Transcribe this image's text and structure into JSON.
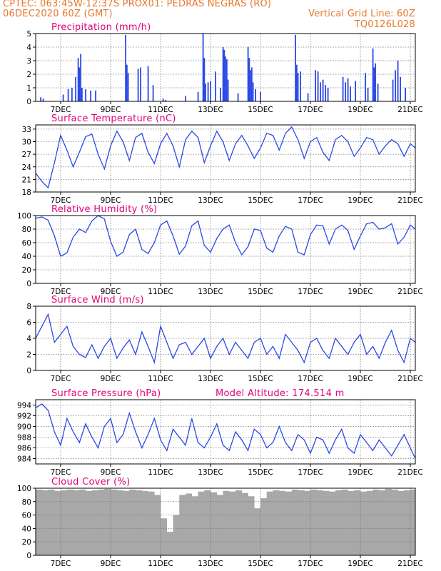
{
  "header": {
    "left_line1": "CPTEC:   063:45W-12:37S   PROX01: PEDRAS NEGRAS (RO)",
    "left_line2": "06DEC2020 60Z (GMT)",
    "right_line2": "Vertical Grid Line: 60Z",
    "right_line3": "TQ0126L028"
  },
  "colors": {
    "series": "#2a48e8",
    "cloud": "#a8a8a8",
    "title": "#e0007a",
    "header": "#e8782e"
  },
  "x_tick_labels": [
    "7DEC",
    "9DEC",
    "11DEC",
    "13DEC",
    "15DEC",
    "17DEC",
    "19DEC",
    "21DEC"
  ],
  "chart_data": [
    {
      "type": "bar",
      "title": "Precipitation (mm/h)",
      "ylim": [
        0,
        5
      ],
      "yticks": [
        0,
        1,
        2,
        3,
        4,
        5
      ],
      "x_unit": "days after 06DEC2020 00Z",
      "xlim": [
        0,
        15.2
      ],
      "values": [
        [
          0.2,
          0.3
        ],
        [
          0.3,
          0.2
        ],
        [
          1.1,
          0.5
        ],
        [
          1.3,
          0.9
        ],
        [
          1.45,
          1.0
        ],
        [
          1.6,
          1.8
        ],
        [
          1.7,
          3.2
        ],
        [
          1.75,
          2.5
        ],
        [
          1.8,
          3.5
        ],
        [
          1.85,
          1.0
        ],
        [
          2.0,
          0.9
        ],
        [
          2.2,
          0.8
        ],
        [
          2.4,
          0.8
        ],
        [
          3.6,
          4.9
        ],
        [
          3.65,
          2.7
        ],
        [
          3.7,
          2.1
        ],
        [
          4.1,
          2.4
        ],
        [
          4.2,
          2.5
        ],
        [
          4.5,
          2.6
        ],
        [
          4.7,
          1.2
        ],
        [
          5.1,
          0.2
        ],
        [
          5.2,
          0.1
        ],
        [
          6.0,
          0.4
        ],
        [
          6.5,
          0.7
        ],
        [
          6.7,
          5.0
        ],
        [
          6.75,
          3.2
        ],
        [
          6.8,
          1.3
        ],
        [
          6.9,
          1.4
        ],
        [
          7.0,
          1.5
        ],
        [
          7.2,
          2.2
        ],
        [
          7.4,
          1.0
        ],
        [
          7.5,
          4.0
        ],
        [
          7.55,
          3.8
        ],
        [
          7.6,
          3.3
        ],
        [
          7.65,
          3.1
        ],
        [
          7.7,
          1.6
        ],
        [
          8.1,
          0.6
        ],
        [
          8.5,
          4.0
        ],
        [
          8.55,
          3.2
        ],
        [
          8.6,
          2.3
        ],
        [
          8.65,
          2.5
        ],
        [
          8.7,
          1.4
        ],
        [
          8.8,
          0.9
        ],
        [
          9.0,
          0.7
        ],
        [
          10.4,
          4.9
        ],
        [
          10.45,
          2.7
        ],
        [
          10.5,
          2.1
        ],
        [
          10.6,
          2.2
        ],
        [
          10.9,
          0.6
        ],
        [
          11.2,
          2.3
        ],
        [
          11.3,
          2.2
        ],
        [
          11.4,
          1.4
        ],
        [
          11.5,
          1.6
        ],
        [
          11.6,
          1.2
        ],
        [
          11.7,
          1.0
        ],
        [
          12.3,
          1.8
        ],
        [
          12.4,
          1.4
        ],
        [
          12.5,
          1.7
        ],
        [
          12.6,
          1.1
        ],
        [
          12.8,
          1.5
        ],
        [
          13.2,
          2.1
        ],
        [
          13.3,
          1.0
        ],
        [
          13.5,
          3.9
        ],
        [
          13.55,
          2.5
        ],
        [
          13.6,
          2.8
        ],
        [
          13.7,
          1.3
        ],
        [
          14.3,
          1.6
        ],
        [
          14.4,
          2.3
        ],
        [
          14.5,
          3.0
        ],
        [
          14.6,
          1.8
        ],
        [
          14.8,
          1.0
        ]
      ]
    },
    {
      "type": "line",
      "title": "Surface Temperature (nC)",
      "ylim": [
        18,
        34
      ],
      "yticks": [
        18,
        21,
        24,
        27,
        30,
        33
      ],
      "x": [
        0,
        0.25,
        0.5,
        0.75,
        1,
        1.25,
        1.5,
        1.75,
        2,
        2.25,
        2.5,
        2.75,
        3,
        3.25,
        3.5,
        3.75,
        4,
        4.25,
        4.5,
        4.75,
        5,
        5.25,
        5.5,
        5.75,
        6,
        6.25,
        6.5,
        6.75,
        7,
        7.25,
        7.5,
        7.75,
        8,
        8.25,
        8.5,
        8.75,
        9,
        9.25,
        9.5,
        9.75,
        10,
        10.25,
        10.5,
        10.75,
        11,
        11.25,
        11.5,
        11.75,
        12,
        12.25,
        12.5,
        12.75,
        13,
        13.25,
        13.5,
        13.75,
        14,
        14.25,
        14.5,
        14.75,
        15,
        15.2
      ],
      "values": [
        22.5,
        20.5,
        19.0,
        25.0,
        31.5,
        28.0,
        24.0,
        27.5,
        31.2,
        31.8,
        27.0,
        23.5,
        29.0,
        32.5,
        30.0,
        25.5,
        31.0,
        32.0,
        27.5,
        24.8,
        29.5,
        32.0,
        29.0,
        24.0,
        30.5,
        32.5,
        31.0,
        25.0,
        29.0,
        32.5,
        30.0,
        25.5,
        29.5,
        31.5,
        29.0,
        26.0,
        28.5,
        32.0,
        31.5,
        28.0,
        32.0,
        33.5,
        30.5,
        26.0,
        30.0,
        31.0,
        27.5,
        25.5,
        30.5,
        31.5,
        30.0,
        26.5,
        28.5,
        31.0,
        30.5,
        27.0,
        29.0,
        30.5,
        29.5,
        26.5,
        29.5,
        28.5
      ]
    },
    {
      "type": "line",
      "title": "Relative Humidity (%)",
      "ylim": [
        0,
        100
      ],
      "yticks": [
        0,
        20,
        40,
        60,
        80,
        100
      ],
      "x": [
        0,
        0.25,
        0.5,
        0.75,
        1,
        1.25,
        1.5,
        1.75,
        2,
        2.25,
        2.5,
        2.75,
        3,
        3.25,
        3.5,
        3.75,
        4,
        4.25,
        4.5,
        4.75,
        5,
        5.25,
        5.5,
        5.75,
        6,
        6.25,
        6.5,
        6.75,
        7,
        7.25,
        7.5,
        7.75,
        8,
        8.25,
        8.5,
        8.75,
        9,
        9.25,
        9.5,
        9.75,
        10,
        10.25,
        10.5,
        10.75,
        11,
        11.25,
        11.5,
        11.75,
        12,
        12.25,
        12.5,
        12.75,
        13,
        13.25,
        13.5,
        13.75,
        14,
        14.25,
        14.5,
        14.75,
        15,
        15.2
      ],
      "values": [
        96,
        98,
        93,
        70,
        40,
        45,
        68,
        80,
        75,
        92,
        100,
        95,
        62,
        40,
        46,
        72,
        80,
        50,
        44,
        60,
        86,
        92,
        70,
        43,
        55,
        85,
        92,
        56,
        46,
        66,
        80,
        86,
        60,
        42,
        54,
        80,
        78,
        52,
        46,
        70,
        84,
        80,
        46,
        42,
        72,
        86,
        85,
        58,
        80,
        86,
        78,
        50,
        70,
        88,
        90,
        80,
        82,
        88,
        58,
        68,
        86,
        80
      ]
    },
    {
      "type": "line",
      "title": "Surface Wind (m/s)",
      "ylim": [
        0,
        8
      ],
      "yticks": [
        0,
        2,
        4,
        6,
        8
      ],
      "x": [
        0,
        0.25,
        0.5,
        0.75,
        1,
        1.25,
        1.5,
        1.75,
        2,
        2.25,
        2.5,
        2.75,
        3,
        3.25,
        3.5,
        3.75,
        4,
        4.25,
        4.5,
        4.75,
        5,
        5.25,
        5.5,
        5.75,
        6,
        6.25,
        6.5,
        6.75,
        7,
        7.25,
        7.5,
        7.75,
        8,
        8.25,
        8.5,
        8.75,
        9,
        9.25,
        9.5,
        9.75,
        10,
        10.25,
        10.5,
        10.75,
        11,
        11.25,
        11.5,
        11.75,
        12,
        12.25,
        12.5,
        12.75,
        13,
        13.25,
        13.5,
        13.75,
        14,
        14.25,
        14.5,
        14.75,
        15,
        15.2
      ],
      "values": [
        4.0,
        5.5,
        7.0,
        3.5,
        4.5,
        5.5,
        3.0,
        2.0,
        1.6,
        3.2,
        1.5,
        3.0,
        4.0,
        1.5,
        2.8,
        3.8,
        2.0,
        4.8,
        3.0,
        1.0,
        5.5,
        3.5,
        1.5,
        3.2,
        3.5,
        2.0,
        3.0,
        4.0,
        1.5,
        3.0,
        4.0,
        2.0,
        3.5,
        2.5,
        1.5,
        3.5,
        4.0,
        2.0,
        3.0,
        1.5,
        4.5,
        3.5,
        2.5,
        1.0,
        3.5,
        4.0,
        2.5,
        1.5,
        4.0,
        3.0,
        2.0,
        3.5,
        4.5,
        2.0,
        3.0,
        1.5,
        3.5,
        5.0,
        2.5,
        1.0,
        4.0,
        3.5
      ]
    },
    {
      "type": "line",
      "title": "Surface Pressure (hPa)",
      "annotation": "Model Altitude: 174.514 m",
      "ylim": [
        983,
        995
      ],
      "yticks": [
        984,
        986,
        988,
        990,
        992,
        994
      ],
      "x": [
        0,
        0.25,
        0.5,
        0.75,
        1,
        1.25,
        1.5,
        1.75,
        2,
        2.25,
        2.5,
        2.75,
        3,
        3.25,
        3.5,
        3.75,
        4,
        4.25,
        4.5,
        4.75,
        5,
        5.25,
        5.5,
        5.75,
        6,
        6.25,
        6.5,
        6.75,
        7,
        7.25,
        7.5,
        7.75,
        8,
        8.25,
        8.5,
        8.75,
        9,
        9.25,
        9.5,
        9.75,
        10,
        10.25,
        10.5,
        10.75,
        11,
        11.25,
        11.5,
        11.75,
        12,
        12.25,
        12.5,
        12.75,
        13,
        13.25,
        13.5,
        13.75,
        14,
        14.25,
        14.5,
        14.75,
        15,
        15.2
      ],
      "values": [
        993.5,
        994.2,
        993.0,
        989.0,
        986.5,
        991.5,
        989.0,
        987.0,
        990.5,
        988.0,
        986.0,
        990.0,
        991.5,
        987.0,
        988.5,
        992.5,
        989.0,
        986.0,
        988.5,
        991.5,
        987.5,
        985.5,
        989.5,
        988.0,
        986.5,
        991.5,
        987.0,
        986.0,
        988.0,
        990.5,
        986.5,
        985.5,
        989.0,
        987.5,
        985.5,
        989.5,
        988.5,
        986.0,
        987.0,
        990.0,
        987.0,
        985.5,
        988.5,
        987.5,
        985.0,
        988.0,
        987.5,
        985.0,
        987.5,
        989.5,
        986.0,
        985.0,
        988.5,
        987.0,
        985.5,
        987.5,
        986.0,
        984.5,
        986.5,
        988.5,
        986.0,
        984.0
      ]
    },
    {
      "type": "area",
      "title": "Cloud Cover (%)",
      "ylim": [
        0,
        100
      ],
      "yticks": [
        0,
        20,
        40,
        60,
        80,
        100
      ],
      "x": [
        0,
        0.25,
        0.5,
        0.75,
        1,
        1.25,
        1.5,
        1.75,
        2,
        2.25,
        2.5,
        2.75,
        3,
        3.25,
        3.5,
        3.75,
        4,
        4.25,
        4.5,
        4.75,
        5,
        5.25,
        5.5,
        5.75,
        6,
        6.25,
        6.5,
        6.75,
        7,
        7.25,
        7.5,
        7.75,
        8,
        8.25,
        8.5,
        8.75,
        9,
        9.25,
        9.5,
        9.75,
        10,
        10.25,
        10.5,
        10.75,
        11,
        11.25,
        11.5,
        11.75,
        12,
        12.25,
        12.5,
        12.75,
        13,
        13.25,
        13.5,
        13.75,
        14,
        14.25,
        14.5,
        14.75,
        15,
        15.2
      ],
      "values": [
        98,
        97,
        98,
        96,
        97,
        98,
        97,
        98,
        96,
        97,
        98,
        99,
        98,
        97,
        96,
        98,
        97,
        96,
        95,
        90,
        55,
        35,
        60,
        90,
        92,
        88,
        95,
        97,
        94,
        90,
        96,
        95,
        97,
        93,
        88,
        70,
        85,
        95,
        97,
        96,
        95,
        98,
        97,
        96,
        98,
        97,
        96,
        95,
        97,
        98,
        96,
        97,
        95,
        96,
        98,
        97,
        99,
        98,
        96,
        97,
        98,
        97
      ]
    }
  ]
}
